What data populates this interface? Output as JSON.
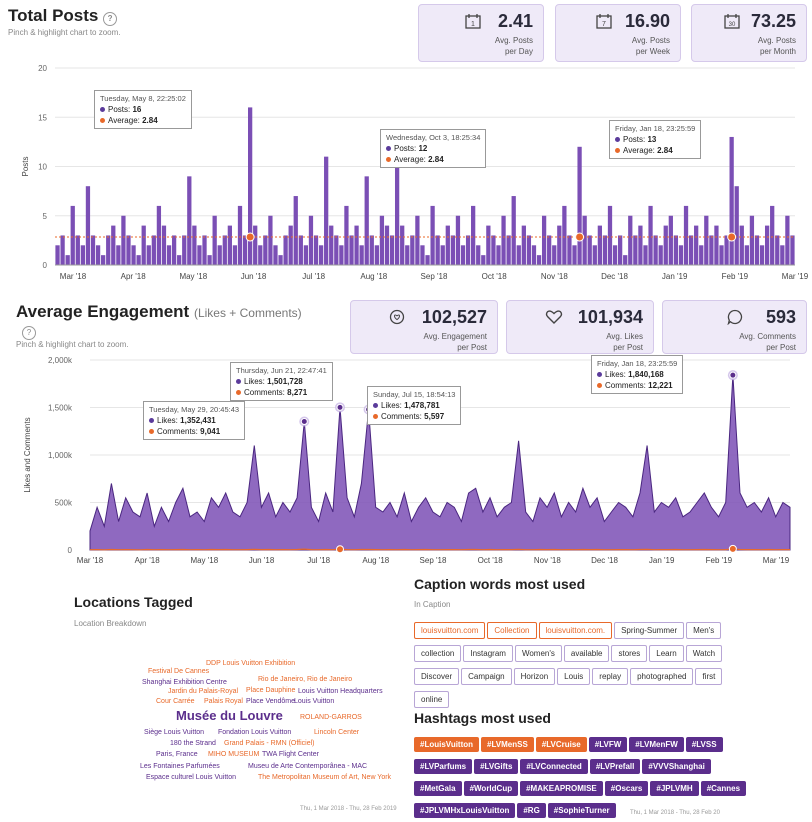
{
  "posts": {
    "title": "Total Posts",
    "subtitle": "Pinch & highlight chart to zoom.",
    "stats": [
      {
        "icon": "calendar-day-icon",
        "glyph": "1",
        "value": "2.41",
        "label1": "Avg. Posts",
        "label2": "per Day"
      },
      {
        "icon": "calendar-week-icon",
        "glyph": "7",
        "value": "16.90",
        "label1": "Avg. Posts",
        "label2": "per Week"
      },
      {
        "icon": "calendar-month-icon",
        "glyph": "30",
        "value": "73.25",
        "label1": "Avg. Posts",
        "label2": "per Month"
      }
    ],
    "tooltips": [
      {
        "date": "Tuesday, May 8, 22:25:02",
        "l1": "Posts:",
        "v1": "16",
        "l2": "Average:",
        "v2": "2.84"
      },
      {
        "date": "Wednesday, Oct 3, 18:25:34",
        "l1": "Posts:",
        "v1": "12",
        "l2": "Average:",
        "v2": "2.84"
      },
      {
        "date": "Friday, Jan 18, 23:25:59",
        "l1": "Posts:",
        "v1": "13",
        "l2": "Average:",
        "v2": "2.84"
      }
    ]
  },
  "engagement": {
    "title": "Average Engagement",
    "title_note": "(Likes + Comments)",
    "subtitle": "Pinch & highlight chart to zoom.",
    "stats": [
      {
        "icon": "chat-heart-icon",
        "glyph": "♡",
        "value": "102,527",
        "label1": "Avg. Engagement",
        "label2": "per Post"
      },
      {
        "icon": "heart-icon",
        "glyph": "♡",
        "value": "101,934",
        "label1": "Avg. Likes",
        "label2": "per Post"
      },
      {
        "icon": "comment-icon",
        "glyph": "○",
        "value": "593",
        "label1": "Avg. Comments",
        "label2": "per Post"
      }
    ],
    "tooltips": [
      {
        "date": "Tuesday, May 29, 20:45:43",
        "l1": "Likes:",
        "v1": "1,352,431",
        "l2": "Comments:",
        "v2": "9,041"
      },
      {
        "date": "Thursday, Jun 21, 22:47:41",
        "l1": "Likes:",
        "v1": "1,501,728",
        "l2": "Comments:",
        "v2": "8,271"
      },
      {
        "date": "Sunday, Jul 15, 18:54:13",
        "l1": "Likes:",
        "v1": "1,478,781",
        "l2": "Comments:",
        "v2": "5,597"
      },
      {
        "date": "Friday, Jan 18, 23:25:59",
        "l1": "Likes:",
        "v1": "1,840,168",
        "l2": "Comments:",
        "v2": "12,221"
      }
    ]
  },
  "locations": {
    "title": "Locations Tagged",
    "subtitle": "Location Breakdown",
    "date_range": "Thu, 1 Mar 2018 - Thu, 28 Feb 2019",
    "words": [
      {
        "text": "DDP Louis Vuitton Exhibition",
        "color": "#e8692a"
      },
      {
        "text": "Festival De Cannes",
        "color": "#e8692a"
      },
      {
        "text": "Shanghai Exhibition Centre",
        "color": "#5b2e8c"
      },
      {
        "text": "Rio de Janeiro, Rio de Janeiro",
        "color": "#e8692a"
      },
      {
        "text": "Jardin du Palais-Royal",
        "color": "#e8692a"
      },
      {
        "text": "Place Dauphine",
        "color": "#e8692a"
      },
      {
        "text": "Louis Vuitton Headquarters",
        "color": "#5b2e8c"
      },
      {
        "text": "Cour Carrée",
        "color": "#e8692a"
      },
      {
        "text": "Palais Royal",
        "color": "#e8692a"
      },
      {
        "text": "Place Vendôme",
        "color": "#5b2e8c"
      },
      {
        "text": "Louis Vuitton",
        "color": "#5b2e8c"
      },
      {
        "text": "Musée du Louvre",
        "color": "#5b2e8c"
      },
      {
        "text": "ROLAND-GARROS",
        "color": "#e8692a"
      },
      {
        "text": "Siège Louis Vuitton",
        "color": "#5b2e8c"
      },
      {
        "text": "Fondation Louis Vuitton",
        "color": "#5b2e8c"
      },
      {
        "text": "Lincoln Center",
        "color": "#e8692a"
      },
      {
        "text": "180 the Strand",
        "color": "#5b2e8c"
      },
      {
        "text": "Grand Palais - RMN (Officiel)",
        "color": "#e8692a"
      },
      {
        "text": "Paris, France",
        "color": "#5b2e8c"
      },
      {
        "text": "MIHO MUSEUM",
        "color": "#e8692a"
      },
      {
        "text": "TWA Flight Center",
        "color": "#5b2e8c"
      },
      {
        "text": "Les Fontaines Parfumées",
        "color": "#5b2e8c"
      },
      {
        "text": "Museu de Arte Contemporânea - MAC",
        "color": "#5b2e8c"
      },
      {
        "text": "Espace culturel Louis Vuitton",
        "color": "#5b2e8c"
      },
      {
        "text": "The Metropolitan Museum of Art, New York",
        "color": "#e8692a"
      }
    ]
  },
  "captions": {
    "title": "Caption words most used",
    "subtitle": "In Caption",
    "words": [
      {
        "text": "louisvuitton.com",
        "hl": true
      },
      {
        "text": "Collection",
        "hl": true
      },
      {
        "text": "louisvuitton.com.",
        "hl": true
      },
      {
        "text": "Spring-Summer",
        "hl": false
      },
      {
        "text": "Men's",
        "hl": false
      },
      {
        "text": "collection",
        "hl": false
      },
      {
        "text": "Instagram",
        "hl": false
      },
      {
        "text": "Women's",
        "hl": false
      },
      {
        "text": "available",
        "hl": false
      },
      {
        "text": "stores",
        "hl": false
      },
      {
        "text": "Learn",
        "hl": false
      },
      {
        "text": "Watch",
        "hl": false
      },
      {
        "text": "Discover",
        "hl": false
      },
      {
        "text": "Campaign",
        "hl": false
      },
      {
        "text": "Horizon",
        "hl": false
      },
      {
        "text": "Louis",
        "hl": false
      },
      {
        "text": "replay",
        "hl": false
      },
      {
        "text": "photographed",
        "hl": false
      },
      {
        "text": "first",
        "hl": false
      },
      {
        "text": "online",
        "hl": false
      }
    ]
  },
  "hashtags": {
    "title": "Hashtags most used",
    "date_range": "Thu, 1 Mar 2018 - Thu, 28 Feb 20",
    "tags": [
      {
        "text": "#LouisVuitton",
        "hl": true
      },
      {
        "text": "#LVMenSS",
        "hl": true
      },
      {
        "text": "#LVCruise",
        "hl": true
      },
      {
        "text": "#LVFW",
        "hl": false
      },
      {
        "text": "#LVMenFW",
        "hl": false
      },
      {
        "text": "#LVSS",
        "hl": false
      },
      {
        "text": "#LVParfums",
        "hl": false
      },
      {
        "text": "#LVGifts",
        "hl": false
      },
      {
        "text": "#LVConnected",
        "hl": false
      },
      {
        "text": "#LVPrefall",
        "hl": false
      },
      {
        "text": "#VVVShanghai",
        "hl": false
      },
      {
        "text": "#MetGala",
        "hl": false
      },
      {
        "text": "#WorldCup",
        "hl": false
      },
      {
        "text": "#MAKEAPROMISE",
        "hl": false
      },
      {
        "text": "#Oscars",
        "hl": false
      },
      {
        "text": "#JPLVMH",
        "hl": false
      },
      {
        "text": "#Cannes",
        "hl": false
      },
      {
        "text": "#JPLVMHxLouisVuitton",
        "hl": false
      },
      {
        "text": "#RG",
        "hl": false
      },
      {
        "text": "#SophieTurner",
        "hl": false
      }
    ]
  },
  "colors": {
    "purple": "#5b2e8c",
    "orange": "#e8692a",
    "fill": "#7b4fb5"
  },
  "chart_data": [
    {
      "type": "bar",
      "ylabel": "Posts",
      "ylim": [
        0,
        20
      ],
      "yticks": [
        0,
        5,
        10,
        15,
        20
      ],
      "xticks": [
        "Mar '18",
        "Apr '18",
        "May '18",
        "Jun '18",
        "Jul '18",
        "Aug '18",
        "Sep '18",
        "Oct '18",
        "Nov '18",
        "Dec '18",
        "Jan '19",
        "Feb '19",
        "Mar '19"
      ],
      "average": 2.84,
      "series": [
        {
          "name": "Posts",
          "values": [
            2,
            3,
            1,
            6,
            3,
            2,
            8,
            3,
            2,
            1,
            3,
            4,
            2,
            5,
            3,
            2,
            1,
            4,
            2,
            3,
            6,
            4,
            2,
            3,
            1,
            3,
            9,
            4,
            2,
            3,
            1,
            5,
            2,
            3,
            4,
            2,
            6,
            3,
            16,
            4,
            2,
            3,
            5,
            2,
            1,
            3,
            4,
            7,
            3,
            2,
            5,
            3,
            2,
            11,
            4,
            3,
            2,
            6,
            3,
            4,
            2,
            9,
            3,
            2,
            5,
            4,
            3,
            12,
            4,
            2,
            3,
            5,
            2,
            1,
            6,
            3,
            2,
            4,
            3,
            5,
            2,
            3,
            6,
            2,
            1,
            4,
            3,
            2,
            5,
            3,
            7,
            2,
            4,
            3,
            2,
            1,
            5,
            3,
            2,
            4,
            6,
            3,
            2,
            12,
            5,
            3,
            2,
            4,
            3,
            6,
            2,
            3,
            1,
            5,
            3,
            4,
            2,
            6,
            3,
            2,
            4,
            5,
            3,
            2,
            6,
            3,
            4,
            2,
            5,
            3,
            4,
            2,
            3,
            13,
            8,
            4,
            2,
            5,
            3,
            2,
            4,
            6,
            3,
            2,
            5,
            3
          ]
        }
      ]
    },
    {
      "type": "area",
      "ylabel": "Likes and Comments",
      "ylim": [
        0,
        2000000
      ],
      "yticks": [
        "0",
        "500k",
        "1,000k",
        "1,500k",
        "2,000k"
      ],
      "xticks": [
        "Mar '18",
        "Apr '18",
        "May '18",
        "Jun '18",
        "Jul '18",
        "Aug '18",
        "Sep '18",
        "Oct '18",
        "Nov '18",
        "Dec '18",
        "Jan '19",
        "Feb '19",
        "Mar '19"
      ],
      "series": [
        {
          "name": "Likes",
          "values": [
            200000,
            450000,
            250000,
            700000,
            300000,
            550000,
            400000,
            350000,
            600000,
            250000,
            450000,
            300000,
            500000,
            650000,
            350000,
            400000,
            300000,
            550000,
            450000,
            600000,
            400000,
            350000,
            500000,
            1100000,
            450000,
            600000,
            350000,
            500000,
            400000,
            550000,
            1352431,
            450000,
            300000,
            600000,
            400000,
            1501728,
            550000,
            350000,
            700000,
            1478781,
            450000,
            400000,
            500000,
            350000,
            600000,
            300000,
            450000,
            550000,
            400000,
            350000,
            500000,
            450000,
            300000,
            600000,
            650000,
            400000,
            550000,
            350000,
            450000,
            500000,
            1150000,
            400000,
            300000,
            550000,
            450000,
            600000,
            350000,
            500000,
            400000,
            650000,
            450000,
            550000,
            300000,
            400000,
            500000,
            450000,
            350000,
            600000,
            1100000,
            400000,
            500000,
            450000,
            550000,
            350000,
            400000,
            500000,
            600000,
            450000,
            350000,
            500000,
            1840168,
            600000,
            450000,
            500000,
            400000,
            550000,
            350000,
            500000,
            450000
          ]
        },
        {
          "name": "Comments",
          "values": [
            3000,
            4000,
            2000,
            5000,
            3000,
            4000,
            3000,
            2000,
            5000,
            3000,
            4000,
            3000,
            4000,
            5000,
            3000,
            4000,
            3000,
            5000,
            4000,
            5000,
            3000,
            3000,
            4000,
            6000,
            4000,
            5000,
            3000,
            4000,
            3000,
            5000,
            9041,
            4000,
            3000,
            5000,
            3000,
            8271,
            4000,
            3000,
            5000,
            5597,
            4000,
            3000,
            4000,
            3000,
            5000,
            3000,
            4000,
            5000,
            3000,
            3000,
            4000,
            4000,
            3000,
            5000,
            5000,
            3000,
            5000,
            3000,
            4000,
            4000,
            6000,
            3000,
            3000,
            5000,
            4000,
            5000,
            3000,
            4000,
            3000,
            5000,
            4000,
            5000,
            3000,
            3000,
            4000,
            4000,
            3000,
            5000,
            6000,
            3000,
            4000,
            4000,
            5000,
            3000,
            3000,
            4000,
            5000,
            4000,
            3000,
            4000,
            12221,
            5000,
            4000,
            4000,
            3000,
            5000,
            3000,
            4000,
            4000
          ]
        }
      ]
    }
  ]
}
